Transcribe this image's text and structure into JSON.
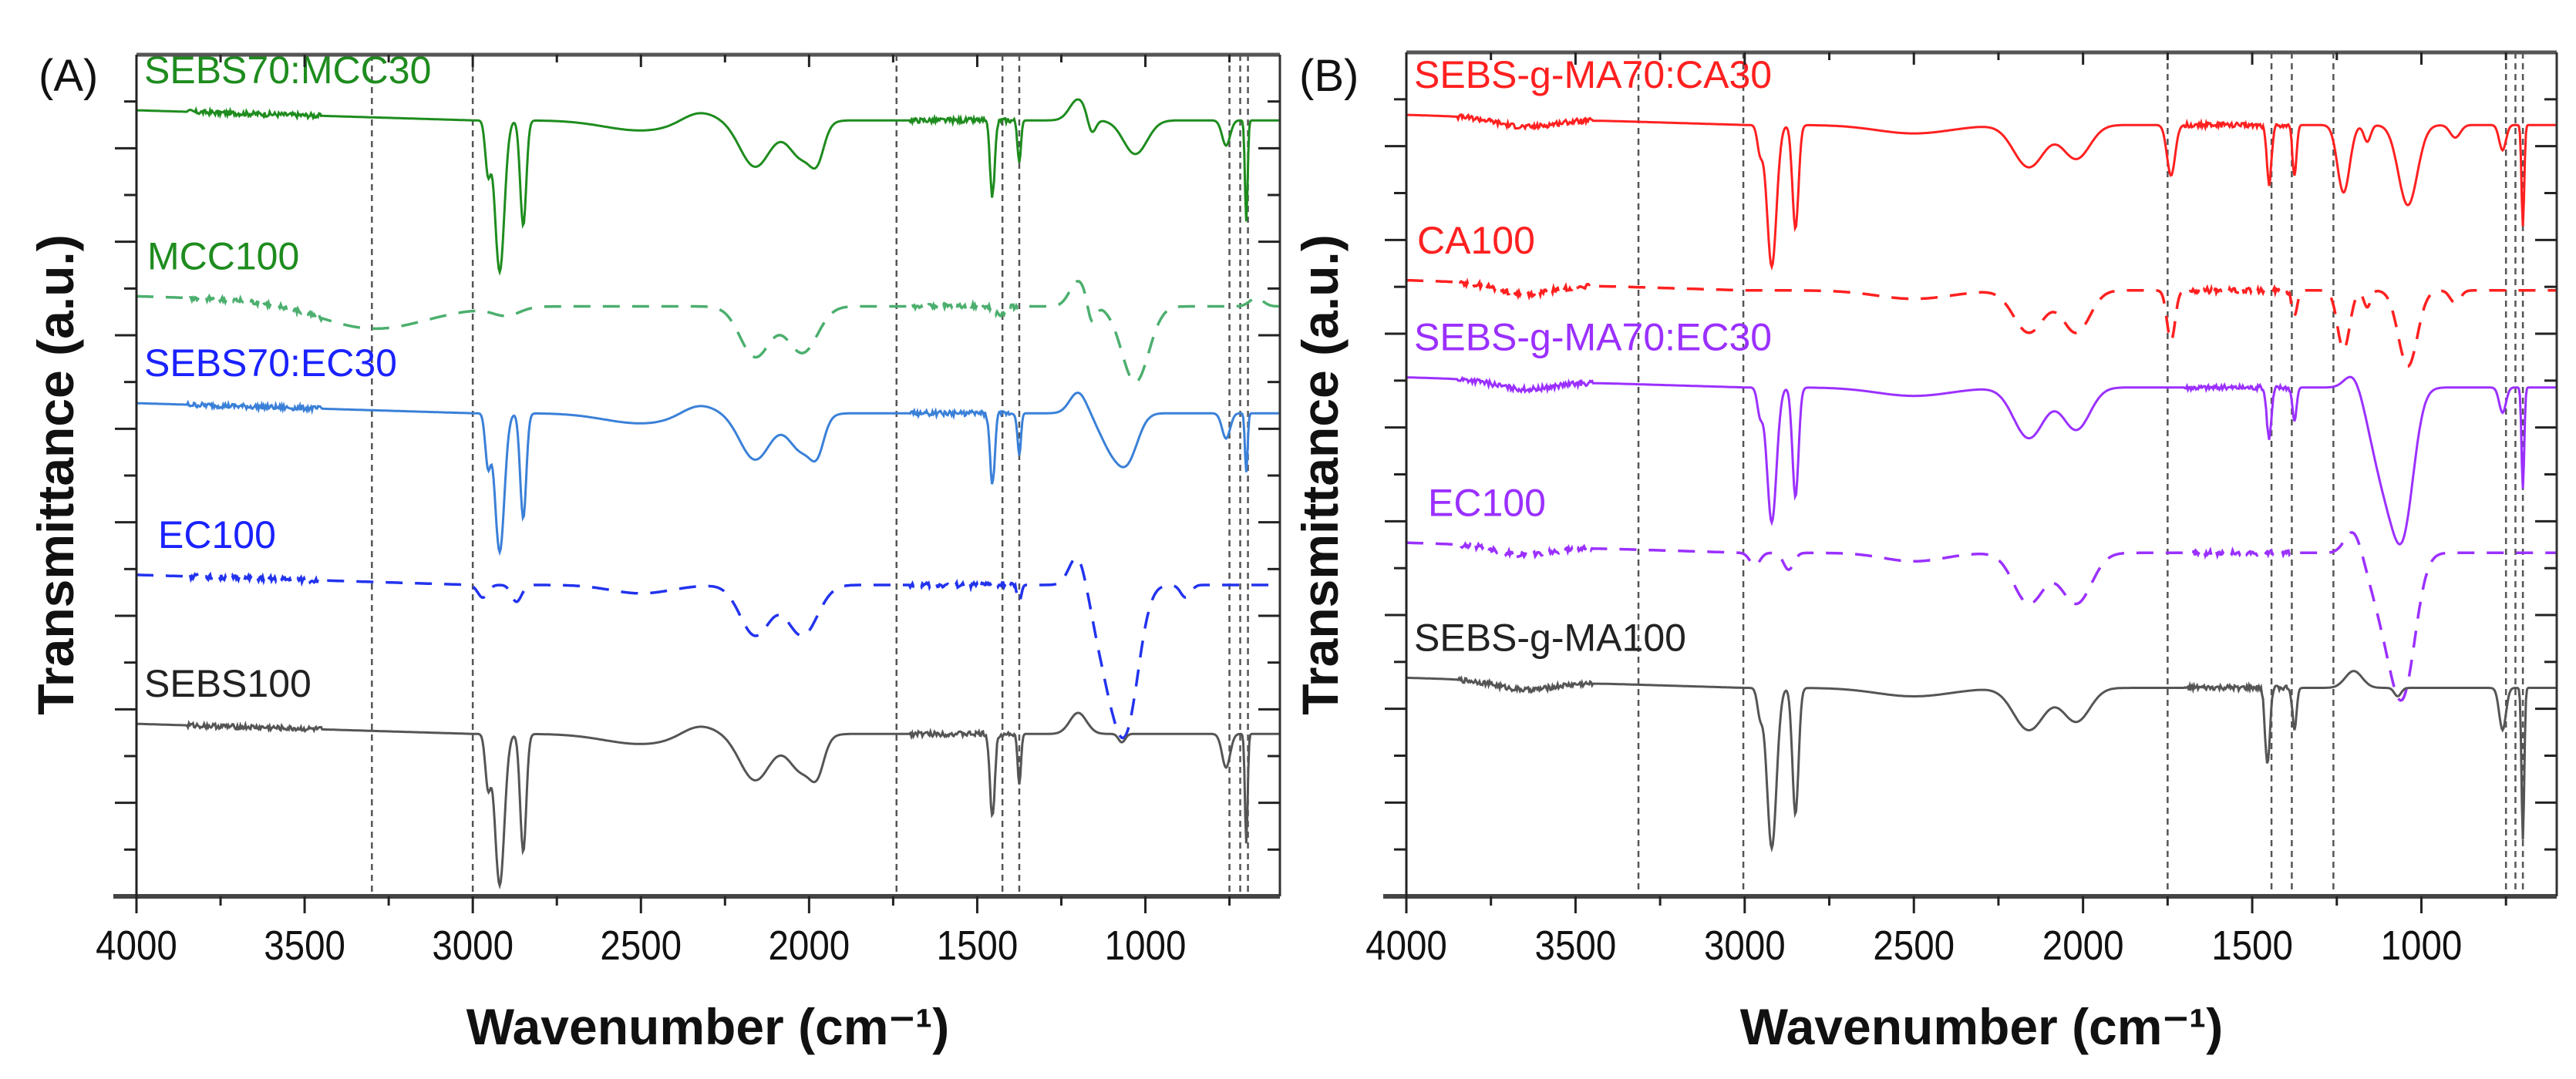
{
  "chart_data": [
    {
      "type": "line",
      "panel_label": "(A)",
      "xlabel": "Wavenumber (cm⁻¹)",
      "ylabel": "Transmittance (a.u.)",
      "xlim": [
        4000,
        600
      ],
      "ylim": [
        0,
        100
      ],
      "xticks": [
        4000,
        3500,
        3000,
        2500,
        2000,
        1500,
        1000
      ],
      "reference_lines": [
        3300,
        3000,
        1740,
        1425,
        1375,
        750,
        718,
        695
      ],
      "series": [
        {
          "name": "SEBS70:MCC30",
          "color": "#1e8c1e",
          "label_color": "#1e8c1e",
          "dash": false,
          "offset": 92.2,
          "bands": [
            [
              2955,
              6,
              8
            ],
            [
              2920,
              18,
              14
            ],
            [
              2850,
              12.5,
              9
            ],
            [
              2500,
              1.2,
              110
            ],
            [
              2330,
              -1.2,
              50
            ],
            [
              2160,
              5.5,
              45
            ],
            [
              2020,
              4.5,
              40
            ],
            [
              1975,
              3,
              20
            ],
            [
              1455,
              9,
              7
            ],
            [
              1375,
              5,
              5
            ],
            [
              1200,
              -2.5,
              25
            ],
            [
              1160,
              2,
              12
            ],
            [
              1030,
              4,
              35
            ],
            [
              760,
              3,
              12
            ],
            [
              700,
              12,
              4
            ]
          ]
        },
        {
          "name": "MCC100",
          "color": "#4caf6e",
          "label_color": "#1e8c1e",
          "dash": true,
          "offset": 70.1,
          "bands": [
            [
              3300,
              3,
              160
            ],
            [
              2900,
              1,
              40
            ],
            [
              2160,
              6,
              45
            ],
            [
              2020,
              5.5,
              45
            ],
            [
              1430,
              1,
              15
            ],
            [
              1200,
              -3,
              25
            ],
            [
              1160,
              2.5,
              12
            ],
            [
              1030,
              9,
              40
            ],
            [
              670,
              -1,
              20
            ]
          ]
        },
        {
          "name": "SEBS70:EC30",
          "color": "#3a80d8",
          "label_color": "#1a22ff",
          "dash": false,
          "offset": 57.4,
          "bands": [
            [
              2955,
              6,
              8
            ],
            [
              2920,
              16.5,
              14
            ],
            [
              2850,
              12.5,
              9
            ],
            [
              2500,
              1.2,
              110
            ],
            [
              2330,
              -1.2,
              50
            ],
            [
              2160,
              5.5,
              45
            ],
            [
              2020,
              4.5,
              40
            ],
            [
              1975,
              3,
              20
            ],
            [
              1455,
              8.5,
              7
            ],
            [
              1375,
              5,
              5
            ],
            [
              1200,
              -2.5,
              25
            ],
            [
              1100,
              4,
              35
            ],
            [
              1050,
              4.5,
              30
            ],
            [
              760,
              3,
              12
            ],
            [
              700,
              7,
              4
            ]
          ]
        },
        {
          "name": "EC100",
          "color": "#2233ee",
          "label_color": "#1a22ff",
          "dash": true,
          "offset": 37.0,
          "bands": [
            [
              2970,
              1.5,
              15
            ],
            [
              2870,
              2,
              15
            ],
            [
              2500,
              1,
              90
            ],
            [
              2160,
              6,
              45
            ],
            [
              2020,
              6,
              45
            ],
            [
              1375,
              2,
              6
            ],
            [
              1200,
              -4,
              25
            ],
            [
              1100,
              11,
              45
            ],
            [
              1050,
              11,
              35
            ],
            [
              880,
              1.5,
              15
            ]
          ]
        },
        {
          "name": "SEBS100",
          "color": "#555555",
          "label_color": "#222222",
          "dash": false,
          "offset": 19.3,
          "bands": [
            [
              2955,
              6,
              8
            ],
            [
              2920,
              18,
              14
            ],
            [
              2850,
              14,
              9
            ],
            [
              2500,
              1.2,
              110
            ],
            [
              2330,
              -1.2,
              50
            ],
            [
              2160,
              5.5,
              45
            ],
            [
              2020,
              4.5,
              40
            ],
            [
              1975,
              3,
              20
            ],
            [
              1455,
              10,
              7
            ],
            [
              1375,
              6,
              5
            ],
            [
              1200,
              -2.5,
              25
            ],
            [
              1070,
              1,
              10
            ],
            [
              760,
              4,
              12
            ],
            [
              700,
              13,
              4
            ]
          ]
        }
      ]
    },
    {
      "type": "line",
      "panel_label": "(B)",
      "xlabel": "Wavenumber (cm⁻¹)",
      "ylabel": "Transmittance (a.u.)",
      "xlim": [
        4000,
        600
      ],
      "ylim": [
        0,
        100
      ],
      "xticks": [
        4000,
        3500,
        3000,
        2500,
        2000,
        1500,
        1000
      ],
      "reference_lines": [
        3314,
        3004,
        1750,
        1443,
        1383,
        1260,
        750,
        722,
        700
      ],
      "series": [
        {
          "name": "SEBS-g-MA70:CA30",
          "color": "#ff2020",
          "label_color": "#ff2020",
          "dash": false,
          "offset": 91.4,
          "bands": [
            [
              3650,
              1,
              80
            ],
            [
              2955,
              3,
              8
            ],
            [
              2920,
              16.8,
              14
            ],
            [
              2850,
              12.3,
              9
            ],
            [
              2500,
              1,
              110
            ],
            [
              2160,
              5,
              45
            ],
            [
              2020,
              4,
              40
            ],
            [
              1740,
              6,
              12
            ],
            [
              1450,
              7,
              7
            ],
            [
              1375,
              6,
              6
            ],
            [
              1230,
              8,
              18
            ],
            [
              1160,
              2,
              10
            ],
            [
              1040,
              9.5,
              28
            ],
            [
              900,
              1.5,
              15
            ],
            [
              760,
              3,
              10
            ],
            [
              700,
              12,
              4
            ]
          ]
        },
        {
          "name": "CA100",
          "color": "#ff2020",
          "label_color": "#ff2020",
          "dash": true,
          "offset": 71.8,
          "bands": [
            [
              3650,
              1.2,
              80
            ],
            [
              2500,
              1,
              110
            ],
            [
              2160,
              5,
              45
            ],
            [
              2020,
              5,
              40
            ],
            [
              1740,
              6,
              12
            ],
            [
              1375,
              3,
              8
            ],
            [
              1230,
              7,
              18
            ],
            [
              1160,
              2,
              10
            ],
            [
              1040,
              9,
              28
            ],
            [
              900,
              1.5,
              15
            ]
          ]
        },
        {
          "name": "SEBS-g-MA70:EC30",
          "color": "#9b30ff",
          "label_color": "#9b30ff",
          "dash": false,
          "offset": 60.3,
          "bands": [
            [
              3650,
              1,
              80
            ],
            [
              2955,
              3,
              8
            ],
            [
              2920,
              16,
              14
            ],
            [
              2850,
              13,
              9
            ],
            [
              2500,
              1,
              110
            ],
            [
              2160,
              6,
              45
            ],
            [
              2020,
              5,
              40
            ],
            [
              1450,
              6,
              7
            ],
            [
              1375,
              4,
              6
            ],
            [
              1200,
              -2,
              25
            ],
            [
              1100,
              12,
              45
            ],
            [
              1050,
              11,
              30
            ],
            [
              760,
              3,
              10
            ],
            [
              700,
              12,
              4
            ]
          ]
        },
        {
          "name": "EC100",
          "color": "#9b30ff",
          "label_color": "#9b30ff",
          "dash": true,
          "offset": 40.7,
          "bands": [
            [
              3650,
              1,
              80
            ],
            [
              2970,
              1.5,
              15
            ],
            [
              2870,
              2,
              15
            ],
            [
              2500,
              1,
              90
            ],
            [
              2160,
              6,
              45
            ],
            [
              2020,
              6,
              45
            ],
            [
              1200,
              -3,
              25
            ],
            [
              1100,
              8,
              45
            ],
            [
              1050,
              12.6,
              35
            ]
          ]
        },
        {
          "name": "SEBS-g-MA100",
          "color": "#555555",
          "label_color": "#222222",
          "dash": false,
          "offset": 24.7,
          "bands": [
            [
              3650,
              1,
              80
            ],
            [
              2955,
              3,
              8
            ],
            [
              2920,
              19,
              14
            ],
            [
              2850,
              15,
              9
            ],
            [
              2500,
              1,
              110
            ],
            [
              2160,
              5,
              45
            ],
            [
              2020,
              4,
              40
            ],
            [
              1455,
              9,
              7
            ],
            [
              1375,
              5,
              6
            ],
            [
              1200,
              -2,
              25
            ],
            [
              1070,
              1,
              10
            ],
            [
              760,
              5,
              10
            ],
            [
              700,
              18,
              4
            ]
          ]
        }
      ]
    }
  ]
}
